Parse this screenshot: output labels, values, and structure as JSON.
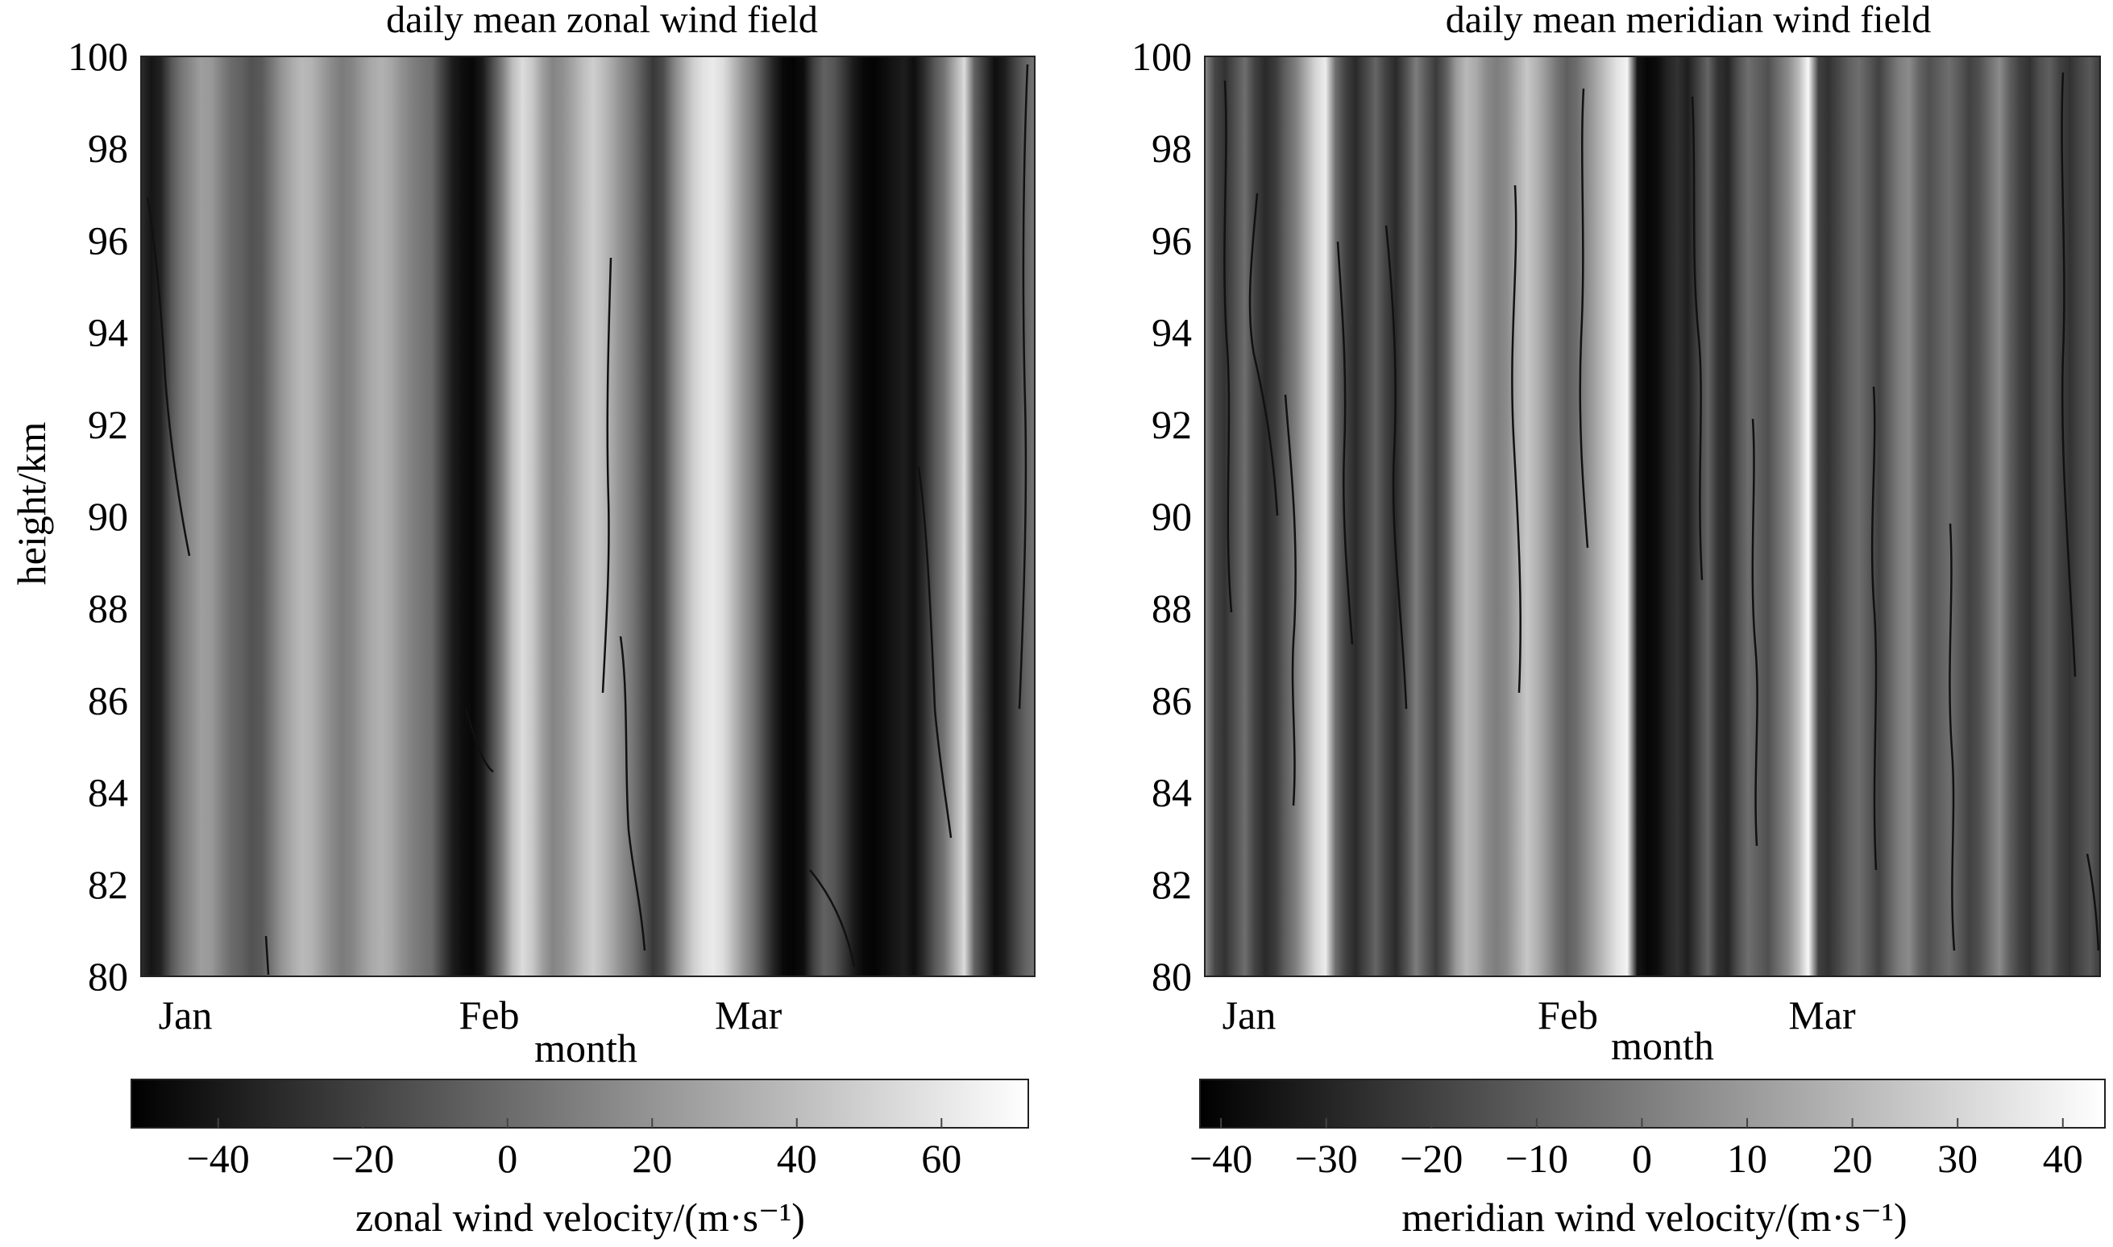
{
  "chart_data": [
    {
      "type": "heatmap",
      "title": "daily mean zonal wind field",
      "xlabel": "month",
      "ylabel": "height/km",
      "x_ticks": [
        "Jan",
        "Feb",
        "Mar"
      ],
      "y_ticks": [
        100,
        98,
        96,
        94,
        92,
        90,
        88,
        86,
        84,
        82,
        80
      ],
      "ylim": [
        80,
        100
      ],
      "colormap": "grayscale (black = low, white = high)",
      "colorbar": {
        "label": "zonal wind velocity/(m·s⁻¹)",
        "ticks": [
          "−40",
          "−20",
          "0",
          "20",
          "40",
          "60"
        ],
        "range": [
          -52,
          72
        ]
      },
      "day_values_mps": [
        -30,
        -42,
        -35,
        -10,
        5,
        15,
        25,
        22,
        10,
        0,
        -5,
        -12,
        -8,
        5,
        20,
        30,
        38,
        35,
        25,
        15,
        8,
        12,
        22,
        30,
        34,
        28,
        18,
        10,
        5,
        0,
        -20,
        -38,
        -45,
        -48,
        -40,
        -15,
        10,
        40,
        55,
        45,
        25,
        12,
        18,
        28,
        40,
        48,
        40,
        28,
        15,
        5,
        -10,
        -25,
        -15,
        10,
        30,
        48,
        58,
        62,
        55,
        38,
        20,
        5,
        -15,
        -35,
        -48,
        -50,
        -45,
        -20,
        -5,
        -10,
        -25,
        -40,
        -48,
        -50,
        -46,
        -42,
        -38,
        -45,
        -30,
        -10,
        5,
        30,
        55,
        -5,
        -25,
        -45,
        -38,
        -20,
        -5,
        5
      ]
    },
    {
      "type": "heatmap",
      "title": "daily mean meridian wind field",
      "xlabel": "month",
      "x_ticks": [
        "Jan",
        "Feb",
        "Mar"
      ],
      "y_ticks": [
        100,
        98,
        96,
        94,
        92,
        90,
        88,
        86,
        84,
        82,
        80
      ],
      "ylim": [
        80,
        100
      ],
      "colormap": "grayscale (black = low, white = high)",
      "colorbar": {
        "label": "meridian wind velocity/(m·s⁻¹)",
        "ticks": [
          "−40",
          "−30",
          "−20",
          "−10",
          "0",
          "10",
          "20",
          "30",
          "40"
        ],
        "range": [
          -42,
          44
        ]
      },
      "day_values_mps": [
        5,
        -18,
        -25,
        -15,
        -5,
        -20,
        -28,
        -22,
        -10,
        0,
        15,
        30,
        38,
        -5,
        -20,
        -28,
        -18,
        -8,
        -20,
        -28,
        -15,
        0,
        -12,
        -22,
        -10,
        10,
        20,
        15,
        5,
        0,
        5,
        15,
        25,
        18,
        8,
        -3,
        -10,
        -5,
        5,
        15,
        25,
        35,
        40,
        -35,
        -40,
        -38,
        -30,
        -25,
        -32,
        -20,
        -8,
        -25,
        -30,
        -15,
        -5,
        -10,
        -15,
        -5,
        5,
        20,
        42,
        -20,
        -25,
        -18,
        -10,
        -5,
        -12,
        -20,
        -10,
        0,
        5,
        -8,
        -15,
        -10,
        -5,
        -12,
        -20,
        -15,
        -5,
        5,
        -10,
        -20,
        -25,
        -15,
        -10,
        -20,
        -25,
        -18,
        -12,
        -22
      ]
    }
  ]
}
